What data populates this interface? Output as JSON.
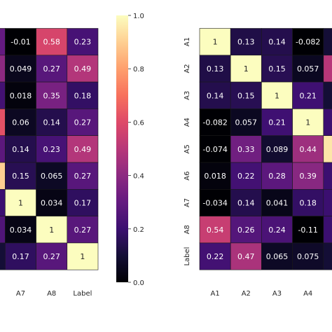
{
  "chart_data": [
    {
      "type": "heatmap",
      "colormap": "magma",
      "vmin": 0.0,
      "vmax": 1.0,
      "visible_x_labels": [
        "",
        "",
        "A7",
        "A8",
        "Label"
      ],
      "visible_y_labels": [
        "",
        "",
        "",
        "",
        "",
        "",
        "",
        "",
        ""
      ],
      "cells": [
        [
          null,
          null,
          "-0.01",
          "0.58",
          "0.23"
        ],
        [
          null,
          null,
          "0.049",
          "0.27",
          "0.49"
        ],
        [
          null,
          null,
          "0.018",
          "0.35",
          "0.18"
        ],
        [
          null,
          null,
          "0.06",
          "0.14",
          "0.27"
        ],
        [
          null,
          null,
          "0.14",
          "0.23",
          "0.49"
        ],
        [
          null,
          null,
          "0.15",
          "0.065",
          "0.27"
        ],
        [
          null,
          null,
          "1",
          "0.034",
          "0.17"
        ],
        [
          null,
          null,
          "0.034",
          "1",
          "0.27"
        ],
        [
          null,
          null,
          "0.17",
          "0.27",
          "1"
        ]
      ],
      "hidden_cell_values": [
        [
          null,
          0.3
        ],
        [
          null,
          0.4
        ],
        [
          null,
          0.22
        ],
        [
          null,
          0.62
        ],
        [
          null,
          0.28
        ],
        [
          null,
          0.9
        ],
        [
          null,
          0.2
        ],
        [
          null,
          0.25
        ],
        [
          null,
          0.1
        ]
      ]
    },
    {
      "type": "colorbar",
      "colormap": "magma",
      "range": [
        0.0,
        1.0
      ],
      "ticks": [
        "0.0",
        "0.2",
        "0.4",
        "0.6",
        "0.8",
        "1.0"
      ]
    },
    {
      "type": "heatmap",
      "colormap": "magma",
      "vmin": 0.0,
      "vmax": 1.0,
      "x_labels": [
        "A1",
        "A2",
        "A3",
        "A4",
        ""
      ],
      "y_labels": [
        "A1",
        "A2",
        "A3",
        "A4",
        "A5",
        "A6",
        "A7",
        "A8",
        "Label"
      ],
      "cells": [
        [
          "1",
          "0.13",
          "0.14",
          "-0.082",
          null
        ],
        [
          "0.13",
          "1",
          "0.15",
          "0.057",
          null
        ],
        [
          "0.14",
          "0.15",
          "1",
          "0.21",
          null
        ],
        [
          "-0.082",
          "0.057",
          "0.21",
          "1",
          null
        ],
        [
          "-0.074",
          "0.33",
          "0.089",
          "0.44",
          null
        ],
        [
          "0.018",
          "0.22",
          "0.28",
          "0.39",
          null
        ],
        [
          "-0.034",
          "0.14",
          "0.041",
          "0.18",
          null
        ],
        [
          "0.54",
          "0.26",
          "0.24",
          "-0.11",
          null
        ],
        [
          "0.22",
          "0.47",
          "0.065",
          "0.075",
          null
        ]
      ],
      "hidden_cell_values": [
        0.1,
        0.5,
        0.1,
        0.2,
        0.95,
        0.2,
        0.2,
        0.2,
        0.1
      ]
    }
  ]
}
